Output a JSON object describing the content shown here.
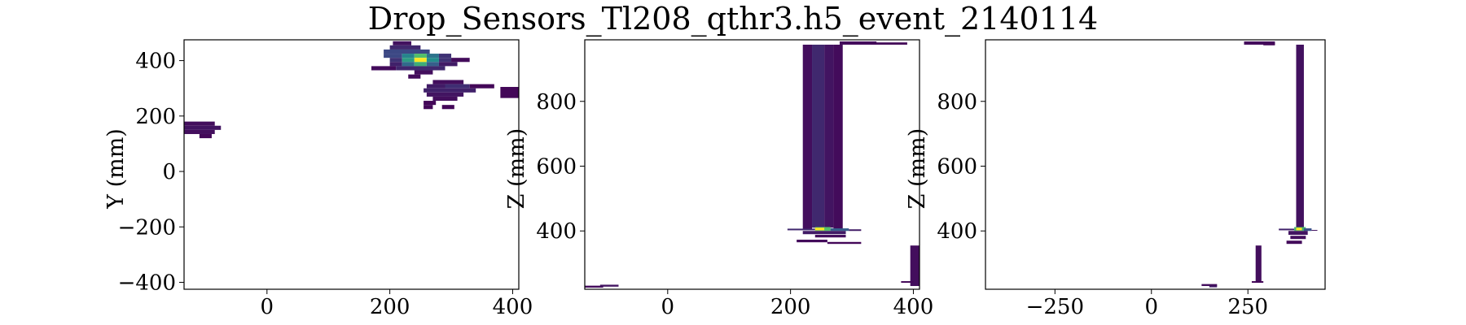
{
  "title": "Drop_Sensors_Tl208_qthr3.h5_event_2140114",
  "chart_data": [
    {
      "type": "heatmap",
      "ylabel": "Y (mm)",
      "xlim": [
        -135,
        410
      ],
      "ylim": [
        -425,
        475
      ],
      "xticks": [
        "0",
        "200",
        "400"
      ],
      "xtick_values": [
        0,
        200,
        400
      ],
      "yticks": [
        "−400",
        "−200",
        "0",
        "200",
        "400"
      ],
      "ytick_values": [
        -400,
        -200,
        0,
        200,
        400
      ],
      "cells": [
        [
          205,
          455,
          30,
          15,
          0.05
        ],
        [
          200,
          440,
          50,
          15,
          0.12
        ],
        [
          190,
          425,
          75,
          15,
          0.22
        ],
        [
          190,
          410,
          30,
          15,
          0.22
        ],
        [
          220,
          410,
          20,
          15,
          0.45
        ],
        [
          240,
          410,
          20,
          15,
          0.7
        ],
        [
          260,
          410,
          20,
          15,
          0.38
        ],
        [
          280,
          410,
          20,
          15,
          0.15
        ],
        [
          200,
          395,
          20,
          15,
          0.15
        ],
        [
          220,
          395,
          20,
          15,
          0.55
        ],
        [
          240,
          395,
          20,
          15,
          1.0
        ],
        [
          260,
          395,
          20,
          15,
          0.48
        ],
        [
          280,
          395,
          20,
          15,
          0.15
        ],
        [
          300,
          395,
          30,
          15,
          0.03
        ],
        [
          200,
          380,
          20,
          15,
          0.1
        ],
        [
          220,
          380,
          20,
          15,
          0.35
        ],
        [
          240,
          380,
          20,
          15,
          0.62
        ],
        [
          260,
          380,
          20,
          15,
          0.3
        ],
        [
          280,
          380,
          30,
          15,
          0.08
        ],
        [
          170,
          365,
          40,
          15,
          0.03
        ],
        [
          210,
          365,
          80,
          15,
          0.12
        ],
        [
          240,
          350,
          30,
          15,
          0.04
        ],
        [
          230,
          335,
          20,
          15,
          0.03
        ],
        [
          270,
          315,
          50,
          15,
          0.04
        ],
        [
          330,
          300,
          40,
          15,
          0.02
        ],
        [
          260,
          300,
          30,
          15,
          0.08
        ],
        [
          290,
          300,
          40,
          15,
          0.14
        ],
        [
          255,
          285,
          85,
          15,
          0.1
        ],
        [
          380,
          265,
          30,
          40,
          0.02
        ],
        [
          260,
          270,
          60,
          15,
          0.06
        ],
        [
          270,
          255,
          40,
          15,
          0.04
        ],
        [
          255,
          240,
          20,
          15,
          0.02
        ],
        [
          285,
          225,
          20,
          15,
          0.02
        ],
        [
          255,
          225,
          15,
          15,
          0.02
        ],
        [
          -135,
          165,
          50,
          15,
          0.04
        ],
        [
          -135,
          150,
          60,
          15,
          0.06
        ],
        [
          -135,
          135,
          50,
          15,
          0.04
        ],
        [
          -110,
          120,
          20,
          15,
          0.02
        ]
      ]
    },
    {
      "type": "heatmap",
      "ylabel": "Z (mm)",
      "xlim": [
        -135,
        410
      ],
      "ylim": [
        220,
        990
      ],
      "xticks": [
        "0",
        "200",
        "400"
      ],
      "xtick_values": [
        0,
        200,
        400
      ],
      "yticks": [
        "400",
        "600",
        "800"
      ],
      "ytick_values": [
        400,
        600,
        800
      ],
      "cells": [
        [
          220,
          405,
          15,
          570,
          0.04
        ],
        [
          235,
          410,
          20,
          565,
          0.12
        ],
        [
          255,
          410,
          15,
          565,
          0.06
        ],
        [
          270,
          405,
          15,
          570,
          0.03
        ],
        [
          280,
          975,
          60,
          10,
          0.03
        ],
        [
          330,
          975,
          60,
          7,
          0.02
        ],
        [
          195,
          402,
          45,
          5,
          0.12
        ],
        [
          240,
          400,
          25,
          12,
          0.7
        ],
        [
          240,
          402,
          15,
          8,
          1.0
        ],
        [
          265,
          400,
          30,
          8,
          0.3
        ],
        [
          295,
          400,
          20,
          5,
          0.08
        ],
        [
          220,
          390,
          70,
          10,
          0.08
        ],
        [
          240,
          380,
          50,
          8,
          0.04
        ],
        [
          210,
          365,
          50,
          8,
          0.03
        ],
        [
          260,
          360,
          55,
          6,
          0.02
        ],
        [
          -135,
          225,
          30,
          6,
          0.03
        ],
        [
          -110,
          228,
          30,
          6,
          0.06
        ],
        [
          395,
          230,
          15,
          125,
          0.04
        ],
        [
          380,
          240,
          20,
          5,
          0.02
        ]
      ]
    },
    {
      "type": "heatmap",
      "ylabel": "Z (mm)",
      "xlim": [
        -430,
        450
      ],
      "ylim": [
        220,
        990
      ],
      "xticks": [
        "−250",
        "0",
        "250"
      ],
      "xtick_values": [
        -250,
        0,
        250
      ],
      "yticks": [
        "400",
        "600",
        "800"
      ],
      "ytick_values": [
        400,
        600,
        800
      ],
      "cells": [
        [
          375,
          410,
          20,
          565,
          0.05
        ],
        [
          330,
          402,
          40,
          5,
          0.1
        ],
        [
          370,
          400,
          30,
          12,
          0.65
        ],
        [
          375,
          402,
          15,
          8,
          1.0
        ],
        [
          395,
          400,
          20,
          8,
          0.25
        ],
        [
          415,
          401,
          15,
          2,
          0.05
        ],
        [
          355,
          388,
          50,
          12,
          0.06
        ],
        [
          360,
          375,
          40,
          10,
          0.04
        ],
        [
          350,
          360,
          40,
          10,
          0.03
        ],
        [
          240,
          975,
          80,
          10,
          0.03
        ],
        [
          290,
          973,
          30,
          8,
          0.02
        ],
        [
          270,
          240,
          15,
          115,
          0.04
        ],
        [
          260,
          240,
          30,
          5,
          0.02
        ],
        [
          130,
          230,
          40,
          6,
          0.04
        ],
        [
          150,
          226,
          20,
          5,
          0.08
        ]
      ]
    }
  ]
}
